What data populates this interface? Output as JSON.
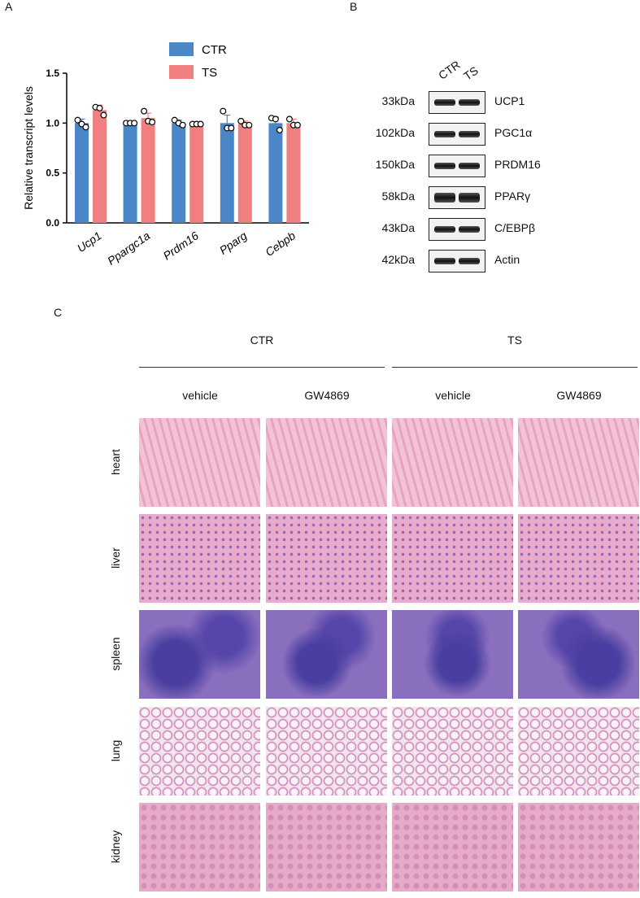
{
  "panels": {
    "a": "A",
    "b": "B",
    "c": "C"
  },
  "chart_data": {
    "type": "bar",
    "ylabel": "Relative transcript levels",
    "ylim": [
      0,
      1.5
    ],
    "yticks": [
      "0.0",
      "0.5",
      "1.0",
      "1.5"
    ],
    "categories": [
      "Ucp1",
      "Ppargc1a",
      "Prdm16",
      "Pparg",
      "Cebpb"
    ],
    "series": [
      {
        "name": "CTR",
        "color": "#4a86c8",
        "values": [
          1.0,
          1.0,
          1.0,
          1.0,
          1.0
        ],
        "err": [
          0.04,
          0.01,
          0.03,
          0.08,
          0.06
        ],
        "points": [
          [
            1.03,
            0.99,
            0.96
          ],
          [
            1.0,
            1.0,
            1.0
          ],
          [
            1.03,
            1.0,
            0.98
          ],
          [
            1.12,
            0.95,
            0.95
          ],
          [
            1.05,
            1.04,
            0.93
          ]
        ]
      },
      {
        "name": "TS",
        "color": "#f07f7f",
        "values": [
          1.13,
          1.05,
          0.99,
          0.99,
          1.0
        ],
        "err": [
          0.05,
          0.05,
          0.01,
          0.03,
          0.04
        ],
        "points": [
          [
            1.16,
            1.15,
            1.08
          ],
          [
            1.12,
            1.02,
            1.01
          ],
          [
            0.99,
            0.99,
            0.99
          ],
          [
            1.02,
            0.98,
            0.98
          ],
          [
            1.04,
            0.98,
            0.98
          ]
        ]
      }
    ],
    "legend": "top"
  },
  "blot": {
    "lanes": [
      "CTR",
      "TS"
    ],
    "rows": [
      {
        "size": "33kDa",
        "protein": "UCP1"
      },
      {
        "size": "102kDa",
        "protein": "PGC1α"
      },
      {
        "size": "150kDa",
        "protein": "PRDM16"
      },
      {
        "size": "58kDa",
        "protein": "PPARγ"
      },
      {
        "size": "43kDa",
        "protein": "C/EBPβ"
      },
      {
        "size": "42kDa",
        "protein": "Actin"
      }
    ]
  },
  "histology": {
    "groups": [
      "CTR",
      "TS"
    ],
    "treatments": [
      "vehicle",
      "GW4869",
      "vehicle",
      "GW4869"
    ],
    "tissues": [
      "heart",
      "liver",
      "spleen",
      "lung",
      "kidney"
    ],
    "colors": {
      "heart": "#ecaec6",
      "liver": "#e9aacb",
      "spleen": "#8a6fbe",
      "lung": "#f3e4ee",
      "kidney": "#e6abc9"
    }
  }
}
